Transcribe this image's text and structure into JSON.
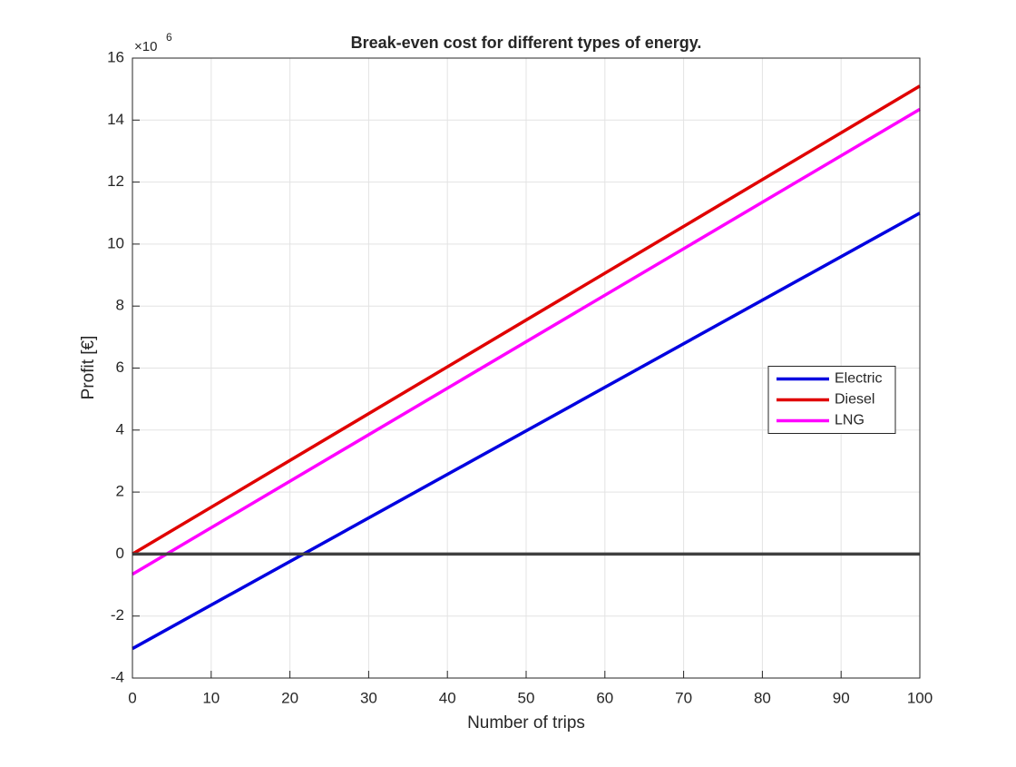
{
  "chart_data": {
    "type": "line",
    "title": "Break-even cost for different types of energy.",
    "xlabel": "Number of trips",
    "ylabel": "Profit [€]",
    "y_multiplier": {
      "base": "×10",
      "exponent": "6"
    },
    "x": [
      0,
      100
    ],
    "series": [
      {
        "name": "Electric",
        "color": "#0000e0",
        "values": [
          -3.05,
          11.0
        ]
      },
      {
        "name": "Diesel",
        "color": "#e00000",
        "values": [
          0,
          15.1
        ]
      },
      {
        "name": "LNG",
        "color": "#ff00ff",
        "values": [
          -0.65,
          14.35
        ]
      },
      {
        "color": "#404040",
        "values": [
          0,
          0
        ]
      }
    ],
    "xlim": [
      0,
      100
    ],
    "xticks": [
      0,
      10,
      20,
      30,
      40,
      50,
      60,
      70,
      80,
      90,
      100
    ],
    "ylim": [
      -4,
      16
    ],
    "yticks": [
      -4,
      -2,
      0,
      2,
      4,
      6,
      8,
      10,
      12,
      14,
      16
    ],
    "grid": true,
    "legend_position": "east"
  }
}
